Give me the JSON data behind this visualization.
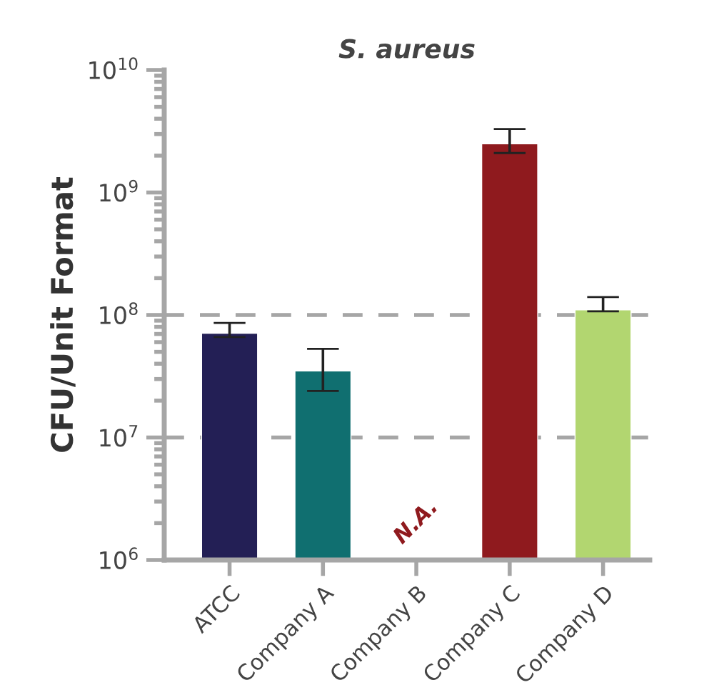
{
  "chart_data": {
    "type": "bar",
    "title": "S. aureus",
    "ylabel": "CFU/Unit Format",
    "categories": [
      "ATCC",
      "Company A",
      "Company B",
      "Company C",
      "Company D"
    ],
    "values": [
      71000000,
      35000000,
      null,
      2500000000,
      110000000
    ],
    "colors": [
      "#231f55",
      "#106f70",
      "#8f1a1e",
      "#8f1a1e",
      "#b2d670"
    ],
    "errors": [
      [
        66000000,
        86000000
      ],
      [
        24000000,
        53000000
      ],
      null,
      [
        2100000000,
        3300000000
      ],
      [
        107000000,
        140000000
      ]
    ],
    "annotations": [
      "N.A."
    ],
    "log": true,
    "ylim": [
      1000000,
      10000000000
    ],
    "yticks": [
      {
        "value": 1000000,
        "label": "10$^{6}$"
      },
      {
        "value": 10000000,
        "label": "10$^{7}$"
      },
      {
        "value": 100000000,
        "label": "10$^{8}$"
      },
      {
        "value": 1000000000,
        "label": "10$^{9}$"
      },
      {
        "value": 10000000000,
        "label": "10$^{10}$"
      }
    ],
    "ref_lines": [
      {
        "axis": "y",
        "value": 10000000,
        "color": "#a6a6a6",
        "line_style": "dashed"
      },
      {
        "axis": "y",
        "value": 100000000,
        "color": "#a6a6a6",
        "line_style": "dashed"
      }
    ],
    "grid": false
  }
}
